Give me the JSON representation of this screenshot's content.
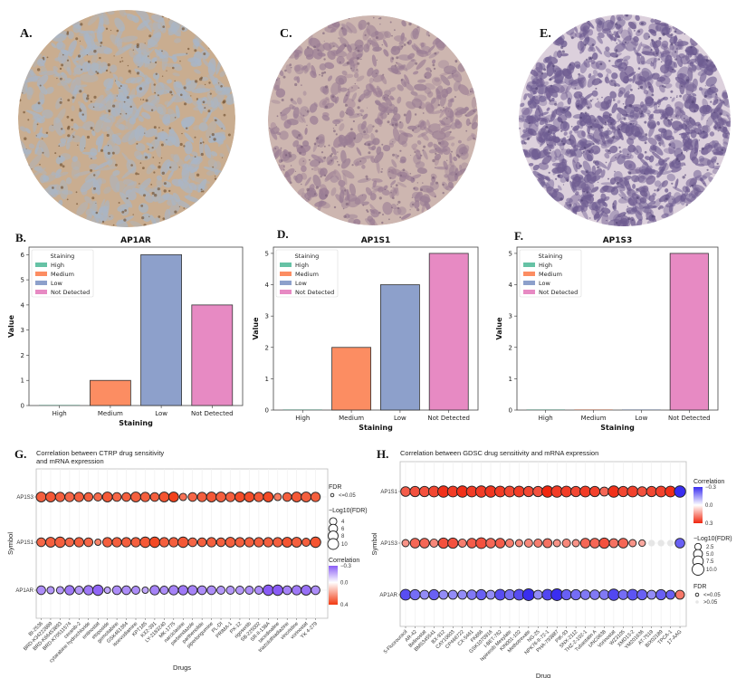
{
  "tissue_panels": [
    {
      "label": "A.",
      "base_color": "#c9ad90",
      "blob_color": "#a9b6c6",
      "dot_color": "#6b4a2a"
    },
    {
      "label": "C.",
      "base_color": "#cdb6b0",
      "blob_color": "#9a7d94",
      "dot_color": "#7a5f78"
    },
    {
      "label": "E.",
      "base_color": "#dcd0dc",
      "blob_color": "#6e5c91",
      "dot_color": "#4e3f72"
    }
  ],
  "staining_colors": {
    "High": "#66c2a5",
    "Medium": "#fc8d62",
    "Low": "#8da0cb",
    "Not Detected": "#e78ac3"
  },
  "chart_data": [
    {
      "type": "bar",
      "panel_label": "B.",
      "title": "AP1AR",
      "xlabel": "Staining",
      "ylabel": "Value",
      "categories": [
        "High",
        "Medium",
        "Low",
        "Not Detected"
      ],
      "values": [
        0,
        1,
        6,
        4
      ],
      "ylim": [
        0,
        6.3
      ],
      "yticks": [
        "0",
        "1",
        "2",
        "3",
        "4",
        "5",
        "6"
      ],
      "legend_title": "Staining",
      "legend_placement": "top-left",
      "grid": false
    },
    {
      "type": "bar",
      "panel_label": "D.",
      "title": "AP1S1",
      "xlabel": "Staining",
      "ylabel": "Value",
      "categories": [
        "High",
        "Medium",
        "Low",
        "Not Detected"
      ],
      "values": [
        0,
        2,
        4,
        5
      ],
      "ylim": [
        0,
        5.2
      ],
      "yticks": [
        "0",
        "1",
        "2",
        "3",
        "4",
        "5"
      ],
      "legend_title": "Staining",
      "legend_placement": "top-left",
      "grid": false
    },
    {
      "type": "bar",
      "panel_label": "F.",
      "title": "AP1S3",
      "xlabel": "Staining",
      "ylabel": "Value",
      "categories": [
        "High",
        "Medium",
        "Low",
        "Not Detected"
      ],
      "values": [
        0,
        0,
        0,
        5
      ],
      "ylim": [
        0,
        5.2
      ],
      "yticks": [
        "0",
        "1",
        "2",
        "3",
        "4",
        "5"
      ],
      "legend_title": "Staining",
      "legend_placement": "top-left",
      "grid": false
    },
    {
      "type": "scatter",
      "panel_label": "G.",
      "title": [
        "Correlation between CTRP drug sensitivity",
        "and mRNA expression"
      ],
      "xlabel": "Drugs",
      "ylabel": "Symbol",
      "categories": [
        "BI-2536",
        "BRD-K34222889",
        "BRD-K66453893",
        "BRD-K70511574",
        "ceranib-2",
        "cytarabine hydrochloride",
        "entinostat",
        "etoposide",
        "gemcitabine",
        "GSK461364",
        "isoevodiamine",
        "KPT185",
        "KX2-391",
        "LY-2183240",
        "MK-1775",
        "narciclasine",
        "parbendazole",
        "parthenolide",
        "piperlongumine",
        "PL-DI",
        "PRIMA-1",
        "PX-12",
        "rigosertib",
        "SB-225002",
        "SR-II-138A",
        "tacedinaline",
        "triazolothiadiazine",
        "vincristine",
        "vorinostat",
        "YK 4-279"
      ],
      "series": [
        {
          "symbol": "AP1S3",
          "correlation": [
            0.3,
            0.32,
            0.3,
            0.28,
            0.3,
            0.3,
            0.27,
            0.32,
            0.28,
            0.3,
            0.3,
            0.3,
            0.3,
            0.33,
            0.38,
            0.25,
            0.28,
            0.3,
            0.32,
            0.3,
            0.3,
            0.35,
            0.35,
            0.32,
            0.36,
            0.22,
            0.3,
            0.32,
            0.3,
            0.3
          ],
          "neg_log10_fdr": [
            8,
            8,
            7,
            7,
            7,
            6,
            5,
            8,
            6,
            6,
            8,
            7,
            6,
            8,
            8,
            4,
            6,
            7,
            8,
            8,
            7,
            8,
            8,
            7,
            8,
            4,
            6,
            8,
            8,
            7
          ],
          "fdr_significant": [
            true,
            true,
            true,
            true,
            true,
            true,
            true,
            true,
            true,
            true,
            true,
            true,
            true,
            true,
            true,
            true,
            true,
            true,
            true,
            true,
            true,
            true,
            true,
            true,
            true,
            true,
            true,
            true,
            true,
            true
          ]
        },
        {
          "symbol": "AP1S1",
          "correlation": [
            0.28,
            0.3,
            0.3,
            0.28,
            0.3,
            0.28,
            0.2,
            0.3,
            0.3,
            0.3,
            0.3,
            0.32,
            0.36,
            0.3,
            0.3,
            0.32,
            0.28,
            0.3,
            0.3,
            0.3,
            0.3,
            0.3,
            0.3,
            0.3,
            0.3,
            0.3,
            0.33,
            0.3,
            0.3,
            0.33
          ],
          "neg_log10_fdr": [
            6,
            8,
            9,
            6,
            7,
            6,
            3,
            7,
            7,
            7,
            7,
            9,
            9,
            7,
            7,
            9,
            6,
            6,
            7,
            6,
            8,
            7,
            7,
            7,
            7,
            7,
            8,
            8,
            5,
            9
          ],
          "fdr_significant": [
            true,
            true,
            true,
            true,
            true,
            true,
            true,
            true,
            true,
            true,
            true,
            true,
            true,
            true,
            true,
            true,
            true,
            true,
            true,
            true,
            true,
            true,
            true,
            true,
            true,
            true,
            true,
            true,
            true,
            true
          ]
        },
        {
          "symbol": "AP1AR",
          "correlation": [
            -0.2,
            -0.18,
            -0.18,
            -0.24,
            -0.18,
            -0.24,
            -0.28,
            -0.15,
            -0.2,
            -0.2,
            -0.2,
            -0.15,
            -0.22,
            -0.2,
            -0.22,
            -0.24,
            -0.22,
            -0.2,
            -0.2,
            -0.18,
            -0.18,
            -0.18,
            -0.2,
            -0.2,
            -0.3,
            -0.3,
            -0.22,
            -0.24,
            -0.26,
            -0.2
          ],
          "neg_log10_fdr": [
            6,
            4,
            4,
            7,
            5,
            7,
            9,
            3,
            6,
            6,
            5,
            3,
            7,
            5,
            7,
            7,
            7,
            6,
            6,
            5,
            5,
            5,
            5,
            5,
            9,
            9,
            6,
            7,
            8,
            6
          ],
          "fdr_significant": [
            true,
            true,
            true,
            true,
            true,
            true,
            true,
            true,
            true,
            true,
            true,
            true,
            true,
            true,
            true,
            true,
            true,
            true,
            true,
            true,
            true,
            true,
            true,
            true,
            true,
            true,
            true,
            true,
            true,
            true
          ]
        }
      ],
      "color_scale": {
        "title": "Correlation",
        "min": -0.3,
        "mid": 0.0,
        "max": 0.4,
        "labels": [
          "−0.3",
          "0.0",
          "0.4"
        ],
        "negative_color": "#8a5cf5",
        "positive_color": "#f23a12"
      },
      "size_legend": {
        "title": "−Log10(FDR)",
        "values": [
          4,
          6,
          8,
          10
        ],
        "labels": [
          "4",
          "6",
          "8",
          "10"
        ]
      },
      "fdr_legend": {
        "title": "FDR",
        "labels": [
          "<=0.05"
        ]
      }
    },
    {
      "type": "scatter",
      "panel_label": "H.",
      "title": [
        "Correlation between GDSC drug sensitivity and mRNA expression"
      ],
      "xlabel": "Drug",
      "ylabel": "Symbol",
      "categories": [
        "5-Fluorouracil",
        "AR-42",
        "Belinostat",
        "BMS345541",
        "BX-912",
        "CAY10603",
        "CP466722",
        "CX-5461",
        "FK866",
        "GSK1070916",
        "I-BET-762",
        "Ispinesib Mesylate",
        "KIN001-102",
        "Methotrexate",
        "NG-25",
        "NPK76-II-72-1",
        "PHA-793887",
        "PIK-93",
        "SNX-2112",
        "THZ-2-102-1",
        "Tubastatin A",
        "UNC0638",
        "Vorinostat",
        "WZ3105",
        "XMD13-2",
        "YM201636",
        "AT-7519",
        "BIX02189",
        "TPCA-1",
        "17-AAG"
      ],
      "series": [
        {
          "symbol": "AP1S1",
          "correlation": [
            0.2,
            0.22,
            0.22,
            0.24,
            0.28,
            0.26,
            0.28,
            0.26,
            0.26,
            0.27,
            0.26,
            0.24,
            0.26,
            0.24,
            0.22,
            0.3,
            0.26,
            0.26,
            0.24,
            0.26,
            0.25,
            0.18,
            0.28,
            0.24,
            0.25,
            0.22,
            0.24,
            0.25,
            0.28,
            -0.3
          ],
          "neg_log10_fdr": [
            6,
            7,
            7,
            8,
            9,
            8,
            9,
            8,
            9,
            9,
            8,
            8,
            8,
            7,
            7,
            9,
            9,
            8,
            7,
            8,
            7,
            5,
            9,
            7,
            8,
            6,
            7,
            8,
            8,
            9
          ],
          "fdr_significant": [
            true,
            true,
            true,
            true,
            true,
            true,
            true,
            true,
            true,
            true,
            true,
            true,
            true,
            true,
            true,
            true,
            true,
            true,
            true,
            true,
            true,
            true,
            true,
            true,
            true,
            true,
            true,
            true,
            true,
            true
          ]
        },
        {
          "symbol": "AP1S3",
          "correlation": [
            0.1,
            0.18,
            0.18,
            0.12,
            0.22,
            0.22,
            0.14,
            0.2,
            0.22,
            0.18,
            0.2,
            0.14,
            0.12,
            0.12,
            0.14,
            0.16,
            0.1,
            0.12,
            0.1,
            0.18,
            0.18,
            0.22,
            0.16,
            0.18,
            0.1,
            0.06,
            0.04,
            0.04,
            0.04,
            -0.22
          ],
          "neg_log10_fdr": [
            3,
            6,
            6,
            4,
            7,
            7,
            4,
            6,
            8,
            6,
            6,
            4,
            3,
            4,
            4,
            5,
            3,
            4,
            3,
            6,
            6,
            7,
            5,
            6,
            3,
            2.5,
            2.5,
            2.5,
            2.5,
            6
          ],
          "fdr_significant": [
            true,
            true,
            true,
            true,
            true,
            true,
            true,
            true,
            true,
            true,
            true,
            true,
            true,
            true,
            true,
            true,
            true,
            true,
            true,
            true,
            true,
            true,
            true,
            true,
            true,
            true,
            false,
            false,
            false,
            true
          ]
        },
        {
          "symbol": "AP1AR",
          "correlation": [
            -0.25,
            -0.2,
            -0.15,
            -0.22,
            -0.15,
            -0.15,
            -0.15,
            -0.18,
            -0.22,
            -0.15,
            -0.25,
            -0.2,
            -0.25,
            -0.3,
            -0.15,
            -0.26,
            -0.3,
            -0.22,
            -0.2,
            -0.18,
            -0.18,
            -0.18,
            -0.26,
            -0.2,
            -0.24,
            -0.22,
            -0.15,
            -0.22,
            -0.22,
            0.15
          ],
          "neg_log10_fdr": [
            8,
            7,
            5,
            7,
            5,
            5,
            5,
            6,
            7,
            5,
            8,
            7,
            8,
            10,
            5,
            8,
            10,
            7,
            7,
            6,
            6,
            6,
            9,
            6,
            8,
            7,
            5,
            7,
            5,
            5
          ],
          "fdr_significant": [
            true,
            true,
            true,
            true,
            true,
            true,
            true,
            true,
            true,
            true,
            true,
            true,
            true,
            true,
            true,
            true,
            true,
            true,
            true,
            true,
            true,
            true,
            true,
            true,
            true,
            true,
            true,
            true,
            true,
            true
          ]
        }
      ],
      "color_scale": {
        "title": "Correlation",
        "min": -0.3,
        "mid": 0.0,
        "max": 0.3,
        "labels": [
          "−0.3",
          "0.0",
          "0.3"
        ],
        "negative_color": "#3a2ef0",
        "positive_color": "#f0260e"
      },
      "size_legend": {
        "title": "−Log10(FDR)",
        "values": [
          2.5,
          5.0,
          7.5,
          10.0
        ],
        "labels": [
          "2.5",
          "5.0",
          "7.5",
          "10.0"
        ]
      },
      "fdr_legend": {
        "title": "FDR",
        "labels": [
          "<=0.05",
          ">0.05"
        ]
      }
    }
  ]
}
